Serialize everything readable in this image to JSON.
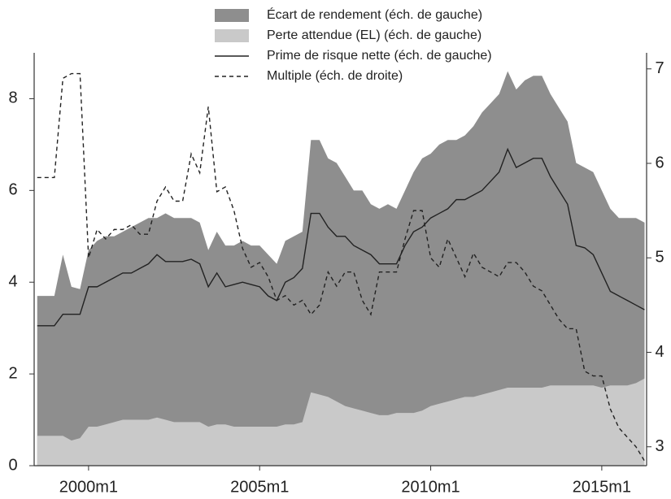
{
  "chart_data": {
    "type": "area-line",
    "x": [
      1998.5,
      1998.75,
      1999,
      1999.25,
      1999.5,
      1999.75,
      2000,
      2000.25,
      2000.5,
      2000.75,
      2001,
      2001.25,
      2001.5,
      2001.75,
      2002,
      2002.25,
      2002.5,
      2002.75,
      2003,
      2003.25,
      2003.5,
      2003.75,
      2004,
      2004.25,
      2004.5,
      2004.75,
      2005,
      2005.25,
      2005.5,
      2005.75,
      2006,
      2006.25,
      2006.5,
      2006.75,
      2007,
      2007.25,
      2007.5,
      2007.75,
      2008,
      2008.25,
      2008.5,
      2008.75,
      2009,
      2009.25,
      2009.5,
      2009.75,
      2010,
      2010.25,
      2010.5,
      2010.75,
      2011,
      2011.25,
      2011.5,
      2011.75,
      2012,
      2012.25,
      2012.5,
      2012.75,
      2013,
      2013.25,
      2013.5,
      2013.75,
      2014,
      2014.25,
      2014.5,
      2014.75,
      2015,
      2015.25,
      2015.5,
      2015.75,
      2016,
      2016.25
    ],
    "series": [
      {
        "name": "Écart de rendement (éch. de gauche)",
        "kind": "area",
        "color": "#8e8e8e",
        "values": [
          3.7,
          3.7,
          3.7,
          4.6,
          3.9,
          3.85,
          4.7,
          4.9,
          5.0,
          5.0,
          5.1,
          5.2,
          5.3,
          5.4,
          5.4,
          5.5,
          5.4,
          5.4,
          5.4,
          5.3,
          4.7,
          5.1,
          4.8,
          4.8,
          4.9,
          4.8,
          4.8,
          4.6,
          4.4,
          4.9,
          5.0,
          5.1,
          7.1,
          7.1,
          6.7,
          6.6,
          6.3,
          6.0,
          6.0,
          5.7,
          5.6,
          5.7,
          5.6,
          6.0,
          6.4,
          6.7,
          6.8,
          7.0,
          7.1,
          7.1,
          7.2,
          7.4,
          7.7,
          7.9,
          8.1,
          8.6,
          8.2,
          8.4,
          8.5,
          8.5,
          8.1,
          7.8,
          7.5,
          6.6,
          6.5,
          6.4,
          6.0,
          5.6,
          5.4,
          5.4,
          5.4,
          5.3
        ]
      },
      {
        "name": "Perte attendue (EL) (éch. de gauche)",
        "kind": "area",
        "color": "#c9c9c9",
        "values": [
          0.65,
          0.65,
          0.65,
          0.65,
          0.55,
          0.6,
          0.85,
          0.85,
          0.9,
          0.95,
          1.0,
          1.0,
          1.0,
          1.0,
          1.05,
          1.0,
          0.95,
          0.95,
          0.95,
          0.95,
          0.85,
          0.9,
          0.9,
          0.85,
          0.85,
          0.85,
          0.85,
          0.85,
          0.85,
          0.9,
          0.9,
          0.95,
          1.6,
          1.55,
          1.5,
          1.4,
          1.3,
          1.25,
          1.2,
          1.15,
          1.1,
          1.1,
          1.15,
          1.15,
          1.15,
          1.2,
          1.3,
          1.35,
          1.4,
          1.45,
          1.5,
          1.5,
          1.55,
          1.6,
          1.65,
          1.7,
          1.7,
          1.7,
          1.7,
          1.7,
          1.75,
          1.75,
          1.75,
          1.75,
          1.75,
          1.75,
          1.7,
          1.75,
          1.75,
          1.75,
          1.8,
          1.9
        ]
      },
      {
        "name": "Prime de risque nette (éch. de gauche)",
        "kind": "line",
        "color": "#222222",
        "values": [
          3.05,
          3.05,
          3.05,
          3.3,
          3.3,
          3.3,
          3.9,
          3.9,
          4.0,
          4.1,
          4.2,
          4.2,
          4.3,
          4.4,
          4.6,
          4.45,
          4.45,
          4.45,
          4.5,
          4.4,
          3.9,
          4.2,
          3.9,
          3.95,
          4.0,
          3.95,
          3.9,
          3.7,
          3.6,
          4.0,
          4.1,
          4.3,
          5.5,
          5.5,
          5.2,
          5.0,
          5.0,
          4.8,
          4.7,
          4.6,
          4.4,
          4.4,
          4.4,
          4.8,
          5.1,
          5.2,
          5.4,
          5.5,
          5.6,
          5.8,
          5.8,
          5.9,
          6.0,
          6.2,
          6.4,
          6.9,
          6.5,
          6.6,
          6.7,
          6.7,
          6.3,
          6.0,
          5.7,
          4.8,
          4.75,
          4.6,
          4.2,
          3.8,
          3.7,
          3.6,
          3.5,
          3.4
        ]
      },
      {
        "name": "Multiple (éch. de droite)",
        "kind": "dashed",
        "color": "#222222",
        "axis": "y2",
        "values": [
          5.85,
          5.85,
          5.85,
          6.9,
          6.95,
          6.95,
          5.0,
          5.3,
          5.2,
          5.3,
          5.3,
          5.35,
          5.25,
          5.25,
          5.6,
          5.75,
          5.6,
          5.6,
          6.1,
          5.9,
          6.6,
          5.7,
          5.75,
          5.5,
          5.1,
          4.9,
          4.95,
          4.8,
          4.55,
          4.6,
          4.5,
          4.55,
          4.4,
          4.5,
          4.85,
          4.7,
          4.85,
          4.85,
          4.55,
          4.4,
          4.85,
          4.85,
          4.85,
          5.2,
          5.5,
          5.5,
          5.0,
          4.9,
          5.2,
          5.0,
          4.8,
          5.05,
          4.9,
          4.85,
          4.8,
          4.95,
          4.95,
          4.85,
          4.7,
          4.65,
          4.5,
          4.35,
          4.25,
          4.25,
          3.8,
          3.75,
          3.75,
          3.4,
          3.2,
          3.1,
          3.0,
          2.85
        ]
      }
    ],
    "xlim": [
      1998.41,
      2016.31
    ],
    "xticks": [
      {
        "value": 2000,
        "label": "2000m1"
      },
      {
        "value": 2005,
        "label": "2005m1"
      },
      {
        "value": 2010,
        "label": "2010m1"
      },
      {
        "value": 2015,
        "label": "2015m1"
      }
    ],
    "ylim": [
      0,
      9
    ],
    "yticks": [
      0,
      2,
      4,
      6,
      8
    ],
    "y2lim": [
      2.8,
      7.17
    ],
    "y2ticks": [
      3,
      4,
      5,
      6,
      7
    ],
    "legend": "top"
  }
}
